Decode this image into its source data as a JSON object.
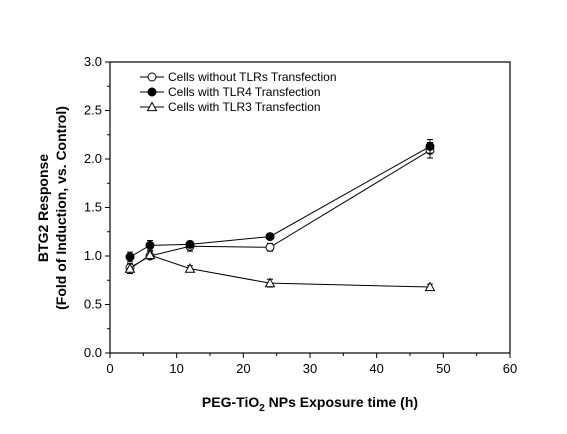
{
  "chart_data": {
    "type": "line",
    "title": "",
    "xlabel": {
      "pre": "PEG-TiO",
      "sub": "2",
      "post": " NPs Exposure time (h)"
    },
    "ylabel": [
      "BTG2 Response",
      "(Fold of Induction, vs. Control)"
    ],
    "xlim": [
      0,
      60
    ],
    "ylim": [
      0.0,
      3.0
    ],
    "xticks": [
      "0",
      "10",
      "20",
      "30",
      "40",
      "50",
      "60"
    ],
    "yticks": [
      "0.0",
      "0.5",
      "1.0",
      "1.5",
      "2.0",
      "2.5",
      "3.0"
    ],
    "grid": false,
    "legend_position": "top-left",
    "series": [
      {
        "name": "Cells without TLRs Transfection",
        "marker": "circle-open",
        "x": [
          3,
          6,
          12,
          24,
          48
        ],
        "y": [
          0.88,
          1.0,
          1.1,
          1.09,
          2.09
        ],
        "err": [
          0.04,
          0.03,
          0.05,
          0.04,
          0.08
        ]
      },
      {
        "name": "Cells with TLR4 Transfection",
        "marker": "circle-filled",
        "x": [
          3,
          6,
          12,
          24,
          48
        ],
        "y": [
          0.99,
          1.11,
          1.12,
          1.2,
          2.13
        ],
        "err": [
          0.05,
          0.05,
          0.03,
          0.03,
          0.07
        ]
      },
      {
        "name": "Cells with TLR3 Transfection",
        "marker": "triangle-open",
        "x": [
          3,
          6,
          12,
          24,
          48
        ],
        "y": [
          0.87,
          1.01,
          0.87,
          0.72,
          0.68
        ],
        "err": [
          0.05,
          0.04,
          0.03,
          0.04,
          0.03
        ]
      }
    ]
  }
}
